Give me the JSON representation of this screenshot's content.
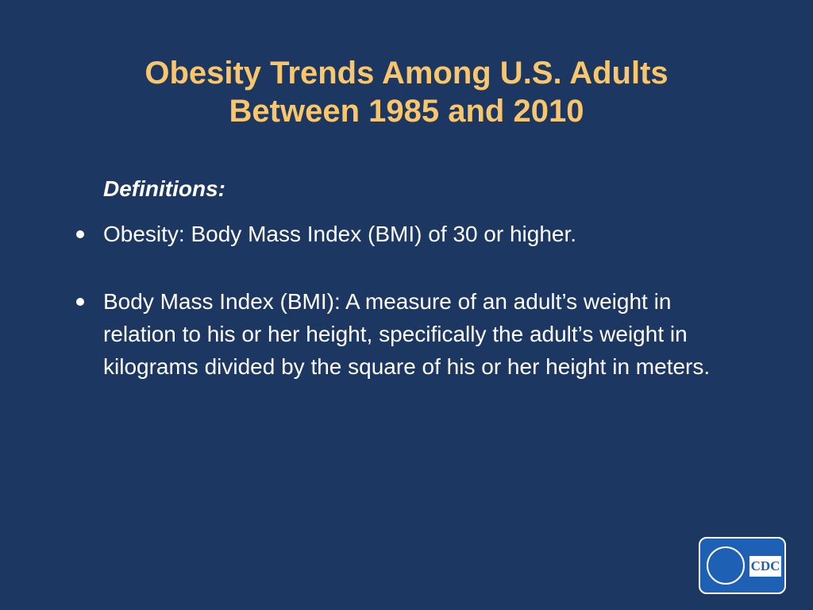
{
  "header": {
    "title_lines": [
      "Obesity Trends Among U.S. Adults",
      "Between 1985 and 2010"
    ]
  },
  "body": {
    "heading": "Definitions:",
    "bullets": [
      "Obesity: Body Mass Index (BMI) of 30 or higher.",
      "Body Mass Index (BMI): A measure of an adult’s weight in relation to his or her height, specifically the adult’s weight in kilograms divided by the square of his or her height in meters."
    ]
  },
  "logo": {
    "label": "CDC"
  }
}
